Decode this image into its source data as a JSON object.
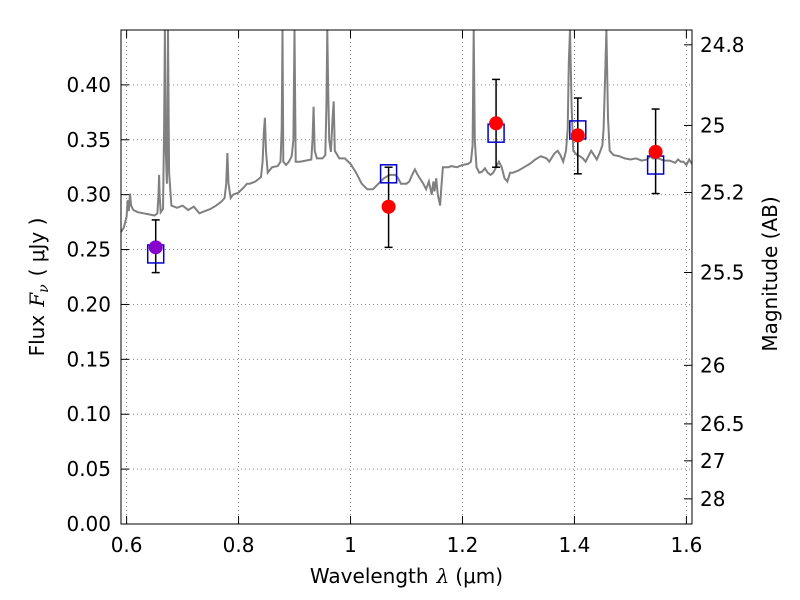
{
  "chart_data": {
    "type": "scatter",
    "title": "",
    "xlabel": "Wavelength",
    "xlabel_symbol": "λ",
    "xlabel_unit": "(μm)",
    "ylabel": "Flux",
    "ylabel_symbol": "F",
    "ylabel_subscript": "ν",
    "ylabel_unit": "( μJy )",
    "y2label": "Magnitude (AB)",
    "xlim": [
      0.59,
      1.61
    ],
    "ylim": [
      0.0,
      0.45
    ],
    "grid": true,
    "xticks": [
      {
        "value": 0.6,
        "label": "0.6"
      },
      {
        "value": 0.8,
        "label": "0.8"
      },
      {
        "value": 1.0,
        "label": "1"
      },
      {
        "value": 1.2,
        "label": "1.2"
      },
      {
        "value": 1.4,
        "label": "1.4"
      },
      {
        "value": 1.6,
        "label": "1.6"
      }
    ],
    "yticks": [
      {
        "value": 0.0,
        "label": "0.00"
      },
      {
        "value": 0.05,
        "label": "0.05"
      },
      {
        "value": 0.1,
        "label": "0.10"
      },
      {
        "value": 0.15,
        "label": "0.15"
      },
      {
        "value": 0.2,
        "label": "0.20"
      },
      {
        "value": 0.25,
        "label": "0.25"
      },
      {
        "value": 0.3,
        "label": "0.30"
      },
      {
        "value": 0.35,
        "label": "0.35"
      },
      {
        "value": 0.4,
        "label": "0.40"
      }
    ],
    "y2ticks": [
      {
        "value": 24.8,
        "label": "24.8"
      },
      {
        "value": 25.0,
        "label": "25"
      },
      {
        "value": 25.2,
        "label": "25.2"
      },
      {
        "value": 25.5,
        "label": "25.5"
      },
      {
        "value": 26.0,
        "label": "26"
      },
      {
        "value": 26.5,
        "label": "26.5"
      },
      {
        "value": 27.0,
        "label": "27"
      },
      {
        "value": 28.0,
        "label": "28"
      }
    ],
    "colors": {
      "spectrum": "#808080",
      "observed": "#ff0000",
      "observed_first": "#8800cc",
      "model": "#0000cc",
      "errorbar": "#000000",
      "grid": "#888888"
    },
    "spectrum": {
      "name": "model spectrum",
      "points": [
        [
          0.59,
          0.266
        ],
        [
          0.595,
          0.27
        ],
        [
          0.6,
          0.28
        ],
        [
          0.602,
          0.295
        ],
        [
          0.604,
          0.285
        ],
        [
          0.606,
          0.301
        ],
        [
          0.608,
          0.29
        ],
        [
          0.612,
          0.286
        ],
        [
          0.62,
          0.284
        ],
        [
          0.63,
          0.283
        ],
        [
          0.64,
          0.282
        ],
        [
          0.65,
          0.281
        ],
        [
          0.655,
          0.283
        ],
        [
          0.657,
          0.3
        ],
        [
          0.658,
          0.318
        ],
        [
          0.659,
          0.3
        ],
        [
          0.661,
          0.284
        ],
        [
          0.665,
          0.287
        ],
        [
          0.667,
          0.36
        ],
        [
          0.6685,
          0.45
        ],
        [
          0.67,
          0.34
        ],
        [
          0.672,
          0.31
        ],
        [
          0.673,
          0.36
        ],
        [
          0.674,
          0.45
        ],
        [
          0.676,
          0.32
        ],
        [
          0.68,
          0.29
        ],
        [
          0.69,
          0.288
        ],
        [
          0.7,
          0.29
        ],
        [
          0.71,
          0.286
        ],
        [
          0.72,
          0.289
        ],
        [
          0.73,
          0.283
        ],
        [
          0.74,
          0.285
        ],
        [
          0.75,
          0.287
        ],
        [
          0.76,
          0.29
        ],
        [
          0.77,
          0.294
        ],
        [
          0.775,
          0.297
        ],
        [
          0.778,
          0.31
        ],
        [
          0.78,
          0.338
        ],
        [
          0.782,
          0.31
        ],
        [
          0.786,
          0.297
        ],
        [
          0.79,
          0.3
        ],
        [
          0.8,
          0.302
        ],
        [
          0.81,
          0.307
        ],
        [
          0.815,
          0.31
        ],
        [
          0.82,
          0.31
        ],
        [
          0.83,
          0.312
        ],
        [
          0.84,
          0.316
        ],
        [
          0.843,
          0.33
        ],
        [
          0.845,
          0.356
        ],
        [
          0.847,
          0.37
        ],
        [
          0.849,
          0.34
        ],
        [
          0.852,
          0.32
        ],
        [
          0.86,
          0.325
        ],
        [
          0.87,
          0.326
        ],
        [
          0.875,
          0.33
        ],
        [
          0.877,
          0.36
        ],
        [
          0.8785,
          0.45
        ],
        [
          0.88,
          0.33
        ],
        [
          0.885,
          0.327
        ],
        [
          0.89,
          0.33
        ],
        [
          0.895,
          0.335
        ],
        [
          0.898,
          0.35
        ],
        [
          0.9,
          0.45
        ],
        [
          0.902,
          0.33
        ],
        [
          0.91,
          0.33
        ],
        [
          0.93,
          0.332
        ],
        [
          0.932,
          0.35
        ],
        [
          0.934,
          0.38
        ],
        [
          0.936,
          0.34
        ],
        [
          0.94,
          0.333
        ],
        [
          0.95,
          0.333
        ],
        [
          0.955,
          0.336
        ],
        [
          0.957,
          0.38
        ],
        [
          0.9585,
          0.45
        ],
        [
          0.96,
          0.4
        ],
        [
          0.962,
          0.35
        ],
        [
          0.965,
          0.339
        ],
        [
          0.968,
          0.37
        ],
        [
          0.97,
          0.385
        ],
        [
          0.972,
          0.34
        ],
        [
          0.98,
          0.333
        ],
        [
          0.99,
          0.333
        ],
        [
          1.0,
          0.328
        ],
        [
          1.01,
          0.32
        ],
        [
          1.02,
          0.31
        ],
        [
          1.03,
          0.305
        ],
        [
          1.04,
          0.305
        ],
        [
          1.05,
          0.31
        ],
        [
          1.06,
          0.315
        ],
        [
          1.07,
          0.318
        ],
        [
          1.08,
          0.318
        ],
        [
          1.085,
          0.315
        ],
        [
          1.09,
          0.31
        ],
        [
          1.095,
          0.31
        ],
        [
          1.1,
          0.31
        ],
        [
          1.105,
          0.312
        ],
        [
          1.11,
          0.318
        ],
        [
          1.115,
          0.323
        ],
        [
          1.12,
          0.318
        ],
        [
          1.13,
          0.31
        ],
        [
          1.135,
          0.305
        ],
        [
          1.14,
          0.312
        ],
        [
          1.145,
          0.3
        ],
        [
          1.148,
          0.312
        ],
        [
          1.15,
          0.303
        ],
        [
          1.153,
          0.315
        ],
        [
          1.156,
          0.3
        ],
        [
          1.16,
          0.29
        ],
        [
          1.162,
          0.305
        ],
        [
          1.165,
          0.325
        ],
        [
          1.17,
          0.325
        ],
        [
          1.175,
          0.325
        ],
        [
          1.18,
          0.326
        ],
        [
          1.19,
          0.325
        ],
        [
          1.2,
          0.327
        ],
        [
          1.21,
          0.328
        ],
        [
          1.215,
          0.33
        ],
        [
          1.218,
          0.345
        ],
        [
          1.22,
          0.45
        ],
        [
          1.222,
          0.35
        ],
        [
          1.225,
          0.325
        ],
        [
          1.23,
          0.32
        ],
        [
          1.235,
          0.321
        ],
        [
          1.24,
          0.324
        ],
        [
          1.245,
          0.32
        ],
        [
          1.25,
          0.318
        ],
        [
          1.255,
          0.32
        ],
        [
          1.26,
          0.325
        ],
        [
          1.265,
          0.33
        ],
        [
          1.27,
          0.325
        ],
        [
          1.275,
          0.315
        ],
        [
          1.28,
          0.312
        ],
        [
          1.285,
          0.32
        ],
        [
          1.29,
          0.32
        ],
        [
          1.3,
          0.322
        ],
        [
          1.31,
          0.325
        ],
        [
          1.32,
          0.328
        ],
        [
          1.33,
          0.332
        ],
        [
          1.34,
          0.335
        ],
        [
          1.35,
          0.333
        ],
        [
          1.355,
          0.33
        ],
        [
          1.36,
          0.334
        ],
        [
          1.365,
          0.338
        ],
        [
          1.37,
          0.34
        ],
        [
          1.375,
          0.336
        ],
        [
          1.38,
          0.33
        ],
        [
          1.385,
          0.34
        ],
        [
          1.388,
          0.36
        ],
        [
          1.39,
          0.42
        ],
        [
          1.392,
          0.45
        ],
        [
          1.395,
          0.38
        ],
        [
          1.398,
          0.34
        ],
        [
          1.405,
          0.336
        ],
        [
          1.41,
          0.335
        ],
        [
          1.415,
          0.333
        ],
        [
          1.42,
          0.33
        ],
        [
          1.425,
          0.335
        ],
        [
          1.43,
          0.34
        ],
        [
          1.435,
          0.336
        ],
        [
          1.44,
          0.332
        ],
        [
          1.445,
          0.338
        ],
        [
          1.45,
          0.345
        ],
        [
          1.452,
          0.36
        ],
        [
          1.455,
          0.41
        ],
        [
          1.457,
          0.45
        ],
        [
          1.46,
          0.37
        ],
        [
          1.463,
          0.34
        ],
        [
          1.47,
          0.336
        ],
        [
          1.48,
          0.335
        ],
        [
          1.49,
          0.333
        ],
        [
          1.5,
          0.332
        ],
        [
          1.51,
          0.333
        ],
        [
          1.52,
          0.331
        ],
        [
          1.53,
          0.332
        ],
        [
          1.535,
          0.335
        ],
        [
          1.54,
          0.333
        ],
        [
          1.55,
          0.333
        ],
        [
          1.56,
          0.331
        ],
        [
          1.57,
          0.331
        ],
        [
          1.58,
          0.329
        ],
        [
          1.585,
          0.332
        ],
        [
          1.59,
          0.33
        ],
        [
          1.595,
          0.33
        ],
        [
          1.6,
          0.327
        ],
        [
          1.605,
          0.332
        ],
        [
          1.61,
          0.328
        ]
      ]
    },
    "observed": [
      {
        "x": 0.652,
        "y": 0.252,
        "yerr_low": 0.023,
        "yerr_high": 0.025
      },
      {
        "x": 1.068,
        "y": 0.289,
        "yerr_low": 0.037,
        "yerr_high": 0.036
      },
      {
        "x": 1.26,
        "y": 0.365,
        "yerr_low": 0.04,
        "yerr_high": 0.04
      },
      {
        "x": 1.406,
        "y": 0.354,
        "yerr_low": 0.035,
        "yerr_high": 0.034
      },
      {
        "x": 1.545,
        "y": 0.339,
        "yerr_low": 0.038,
        "yerr_high": 0.039
      }
    ],
    "model_photometry": [
      {
        "x": 0.652,
        "y": 0.246
      },
      {
        "x": 1.068,
        "y": 0.319
      },
      {
        "x": 1.26,
        "y": 0.356
      },
      {
        "x": 1.406,
        "y": 0.359
      },
      {
        "x": 1.545,
        "y": 0.327
      }
    ]
  }
}
